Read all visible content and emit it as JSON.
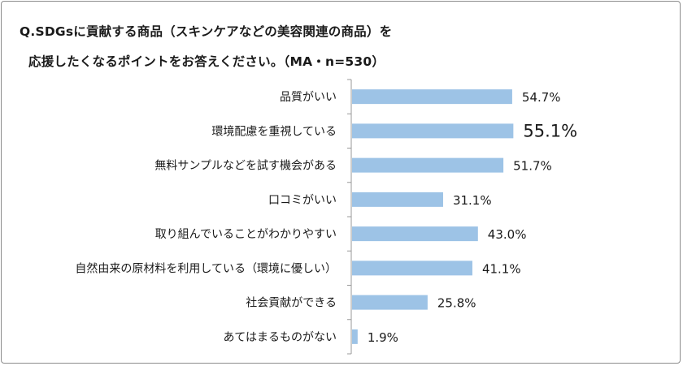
{
  "chart_data": {
    "type": "bar",
    "orientation": "horizontal",
    "title_line1": "Q.SDGsに貢献する商品（スキンケアなどの美容関連の商品）を",
    "title_line2": "応援したくなるポイントをお答えください。（MA・n=530）",
    "categories": [
      "品質がいい",
      "環境配慮を重視している",
      "無料サンプルなどを試す機会がある",
      "口コミがいい",
      "取り組んでいることがわかりやすい",
      "自然由来の原材料を利用している（環境に優しい）",
      "社会貢献ができる",
      "あてはまるものがない"
    ],
    "values": [
      54.7,
      55.1,
      51.7,
      31.1,
      43.0,
      41.1,
      25.8,
      1.9
    ],
    "value_labels": [
      "54.7%",
      "55.1%",
      "51.7%",
      "31.1%",
      "43.0%",
      "41.1%",
      "25.8%",
      "1.9%"
    ],
    "highlight_index": 1,
    "xlim": [
      0,
      100
    ],
    "bar_color": "#9dc3e6",
    "axis_color": "#999999"
  }
}
